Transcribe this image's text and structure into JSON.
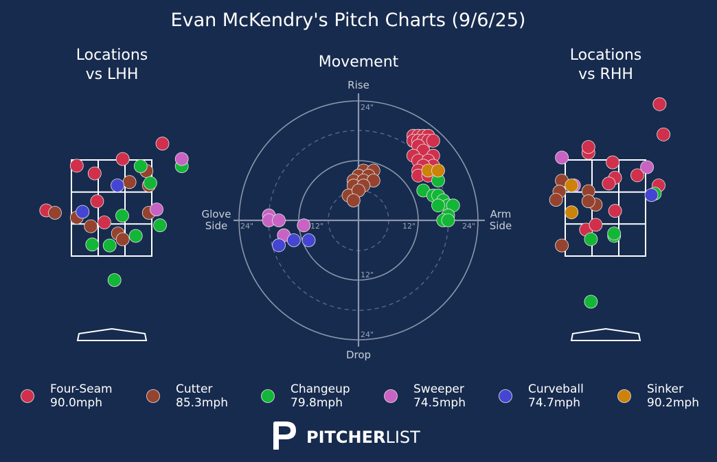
{
  "title": "Evan McKendry's Pitch Charts (9/6/25)",
  "colors": {
    "background": "#172b4e",
    "Four-Seam": "#d0304c",
    "Cutter": "#95432e",
    "Changeup": "#13b636",
    "Sweeper": "#c863c4",
    "Curveball": "#4545d3",
    "Sinker": "#cd820a"
  },
  "panels": {
    "lhh_title_line1": "Locations",
    "lhh_title_line2": "vs LHH",
    "movement_title": "Movement",
    "rhh_title_line1": "Locations",
    "rhh_title_line2": "vs RHH"
  },
  "movement_axes": {
    "top": "Rise",
    "bottom": "Drop",
    "left_line1": "Glove",
    "left_line2": "Side",
    "right_line1": "Arm",
    "right_line2": "Side",
    "ring_top_24": "24\"",
    "ring_top_12": "",
    "ring_bottom_12": "12\"",
    "ring_bottom_24": "24\"",
    "ring_left_24": "24\"",
    "ring_left_12": "12\"",
    "ring_right_12": "12\"",
    "ring_right_24": "24\""
  },
  "legend": [
    {
      "name": "Four-Seam",
      "speed": "90.0mph",
      "color": "#d0304c"
    },
    {
      "name": "Cutter",
      "speed": "85.3mph",
      "color": "#95432e"
    },
    {
      "name": "Changeup",
      "speed": "79.8mph",
      "color": "#13b636"
    },
    {
      "name": "Sweeper",
      "speed": "74.5mph",
      "color": "#c863c4"
    },
    {
      "name": "Curveball",
      "speed": "74.7mph",
      "color": "#4545d3"
    },
    {
      "name": "Sinker",
      "speed": "90.2mph",
      "color": "#cd820a"
    }
  ],
  "logo": {
    "bold": "PITCHER",
    "light": "LIST"
  },
  "chart_data": [
    {
      "type": "scatter",
      "title": "Movement",
      "xlabel_left": "Glove Side",
      "xlabel_right": "Arm Side",
      "ylabel_top": "Rise",
      "ylabel_bottom": "Drop",
      "xlim": [
        -24,
        24
      ],
      "ylim": [
        -24,
        24
      ],
      "units": "inches",
      "series": [
        {
          "name": "Four-Seam",
          "points": [
            [
              11,
              17
            ],
            [
              12,
              17
            ],
            [
              13,
              17
            ],
            [
              14,
              17
            ],
            [
              11,
              16
            ],
            [
              12,
              16
            ],
            [
              13,
              16
            ],
            [
              14,
              16
            ],
            [
              15,
              16
            ],
            [
              12,
              15
            ],
            [
              13,
              14
            ],
            [
              15,
              13
            ],
            [
              11,
              13
            ],
            [
              12,
              12
            ],
            [
              14,
              12
            ],
            [
              15,
              11
            ],
            [
              13,
              11
            ],
            [
              12,
              10
            ],
            [
              12,
              9
            ],
            [
              14,
              9
            ]
          ]
        },
        {
          "name": "Cutter",
          "points": [
            [
              1,
              10
            ],
            [
              3,
              10
            ],
            [
              0,
              9
            ],
            [
              2,
              9
            ],
            [
              -1,
              8
            ],
            [
              1,
              8
            ],
            [
              3,
              8
            ],
            [
              -1,
              7
            ],
            [
              1,
              7
            ],
            [
              -2,
              5
            ],
            [
              0,
              6
            ],
            [
              -1,
              4
            ]
          ]
        },
        {
          "name": "Changeup",
          "points": [
            [
              16,
              8
            ],
            [
              13,
              6
            ],
            [
              15,
              5
            ],
            [
              16,
              5
            ],
            [
              17,
              4
            ],
            [
              18,
              3
            ],
            [
              16,
              3
            ],
            [
              19,
              3
            ],
            [
              18,
              1
            ],
            [
              17,
              0
            ],
            [
              18,
              0
            ]
          ]
        },
        {
          "name": "Sweeper",
          "points": [
            [
              -18,
              1
            ],
            [
              -18,
              0
            ],
            [
              -16,
              0
            ],
            [
              -11,
              -1
            ],
            [
              -15,
              -3
            ]
          ]
        },
        {
          "name": "Curveball",
          "points": [
            [
              -13,
              -4
            ],
            [
              -16,
              -5
            ],
            [
              -10,
              -4
            ]
          ]
        },
        {
          "name": "Sinker",
          "points": [
            [
              14,
              10
            ],
            [
              16,
              10
            ]
          ]
        }
      ]
    },
    {
      "type": "scatter",
      "title": "Locations vs LHH",
      "units": "feet",
      "xlim": [
        -2.6,
        2.6
      ],
      "ylim": [
        0.2,
        5.0
      ],
      "strike_zone": {
        "x": [
          -0.83,
          0.83
        ],
        "z": [
          1.5,
          3.5
        ]
      },
      "series": [
        {
          "name": "Four-Seam",
          "points": [
            [
              1.05,
              3.84
            ],
            [
              0.23,
              3.52
            ],
            [
              -0.72,
              3.38
            ],
            [
              -0.35,
              3.22
            ],
            [
              -0.3,
              2.64
            ],
            [
              -1.35,
              2.45
            ],
            [
              -0.15,
              2.2
            ]
          ]
        },
        {
          "name": "Cutter",
          "points": [
            [
              0.72,
              3.27
            ],
            [
              0.37,
              3.04
            ],
            [
              0.77,
              2.97
            ],
            [
              -1.17,
              2.4
            ],
            [
              0.77,
              2.4
            ],
            [
              -0.72,
              2.3
            ],
            [
              -0.43,
              2.12
            ],
            [
              0.13,
              1.97
            ],
            [
              0.23,
              1.85
            ]
          ]
        },
        {
          "name": "Changeup",
          "points": [
            [
              0.6,
              3.37
            ],
            [
              1.45,
              3.37
            ],
            [
              0.8,
              3.02
            ],
            [
              0.22,
              2.34
            ],
            [
              1.0,
              2.14
            ],
            [
              0.5,
              1.92
            ],
            [
              -0.4,
              1.74
            ],
            [
              -0.04,
              1.72
            ],
            [
              0.06,
              1.0
            ]
          ]
        },
        {
          "name": "Sweeper",
          "points": [
            [
              1.45,
              3.52
            ],
            [
              0.93,
              2.47
            ]
          ]
        },
        {
          "name": "Curveball",
          "points": [
            [
              0.12,
              2.97
            ],
            [
              -0.6,
              2.42
            ]
          ]
        },
        {
          "name": "Sinker",
          "points": []
        }
      ]
    },
    {
      "type": "scatter",
      "title": "Locations vs RHH",
      "units": "feet",
      "xlim": [
        -2.6,
        2.6
      ],
      "ylim": [
        0.2,
        5.0
      ],
      "strike_zone": {
        "x": [
          -0.83,
          0.83
        ],
        "z": [
          1.5,
          3.5
        ]
      },
      "series": [
        {
          "name": "Four-Seam",
          "points": [
            [
              1.12,
              4.66
            ],
            [
              1.2,
              4.03
            ],
            [
              -0.35,
              3.65
            ],
            [
              -0.35,
              3.77
            ],
            [
              0.15,
              3.45
            ],
            [
              0.2,
              3.13
            ],
            [
              0.66,
              3.18
            ],
            [
              0.07,
              3.01
            ],
            [
              1.1,
              2.97
            ],
            [
              0.2,
              2.44
            ],
            [
              -0.4,
              2.05
            ],
            [
              -0.2,
              2.15
            ]
          ]
        },
        {
          "name": "Cutter",
          "points": [
            [
              -0.9,
              3.07
            ],
            [
              -0.95,
              2.84
            ],
            [
              -1.02,
              2.67
            ],
            [
              -0.35,
              2.85
            ],
            [
              -0.2,
              2.57
            ],
            [
              -0.35,
              2.64
            ],
            [
              -0.9,
              1.72
            ]
          ]
        },
        {
          "name": "Changeup",
          "points": [
            [
              1.02,
              2.8
            ],
            [
              0.18,
              1.92
            ],
            [
              0.18,
              1.97
            ],
            [
              -0.3,
              1.85
            ],
            [
              -0.3,
              0.55
            ]
          ]
        },
        {
          "name": "Sweeper",
          "points": [
            [
              -0.9,
              3.55
            ],
            [
              0.86,
              3.35
            ],
            [
              -0.65,
              2.97
            ]
          ]
        },
        {
          "name": "Curveball",
          "points": [
            [
              0.95,
              2.77
            ]
          ]
        },
        {
          "name": "Sinker",
          "points": [
            [
              -0.7,
              2.97
            ],
            [
              -0.7,
              2.41
            ]
          ]
        }
      ]
    }
  ]
}
